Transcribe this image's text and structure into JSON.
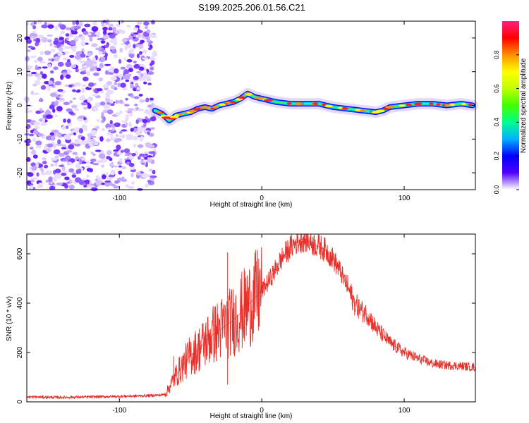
{
  "figure": {
    "title": "S199.2025.206.01.56.C21"
  },
  "chart_data": [
    {
      "type": "heatmap",
      "xlabel": "Height of straight line (km)",
      "ylabel": "Frequency (Hz)",
      "xlim": [
        -165,
        150
      ],
      "ylim": [
        -25,
        25
      ],
      "x_ticks": [
        -100,
        0,
        100
      ],
      "y_ticks": [
        -20,
        -10,
        0,
        10,
        20
      ],
      "noise_region_x": [
        -165,
        -75
      ],
      "ridge": {
        "x": [
          -75,
          -70,
          -65,
          -60,
          -55,
          -50,
          -45,
          -40,
          -35,
          -30,
          -25,
          -20,
          -15,
          -10,
          -5,
          0,
          10,
          20,
          30,
          40,
          50,
          60,
          70,
          80,
          85,
          90,
          100,
          110,
          120,
          130,
          140,
          148
        ],
        "freq": [
          -1.5,
          -2.5,
          -4.5,
          -3,
          -2.5,
          -2,
          -1,
          -0.5,
          -1,
          0,
          0.5,
          1,
          2,
          3.5,
          2.5,
          2,
          1,
          0.5,
          0.5,
          0.5,
          -0.5,
          -1,
          -1.5,
          -2,
          -1.5,
          -0.5,
          0,
          0.5,
          0.5,
          0,
          0.5,
          0
        ]
      },
      "colorbar": {
        "label": "Normalized spectral amplitude",
        "range": [
          0,
          1
        ],
        "ticks": [
          0.0,
          0.2,
          0.4,
          0.6,
          0.8
        ],
        "tick_labels": [
          "0.0",
          "0.2",
          "0.4",
          "0.6",
          "0.8"
        ],
        "colors": [
          "#ffffff",
          "#5000ff",
          "#0000ff",
          "#00b0ff",
          "#00ff90",
          "#40ff00",
          "#c0ff00",
          "#ffff00",
          "#ff9000",
          "#ff0000",
          "#ff2080"
        ]
      }
    },
    {
      "type": "line",
      "xlabel": "Height of straight line (km)",
      "ylabel": "SNR (10 * v/v)",
      "xlim": [
        -165,
        150
      ],
      "ylim": [
        0,
        680
      ],
      "x_ticks": [
        -100,
        0,
        100
      ],
      "y_ticks": [
        0,
        200,
        400,
        600
      ],
      "series": [
        {
          "color": "#e8302a",
          "x": [
            -165,
            -140,
            -120,
            -100,
            -80,
            -70,
            -67,
            -65,
            -60,
            -55,
            -50,
            -45,
            -40,
            -35,
            -30,
            -25,
            -20,
            -15,
            -10,
            -5,
            0,
            5,
            10,
            15,
            20,
            25,
            30,
            35,
            40,
            45,
            50,
            55,
            60,
            65,
            70,
            75,
            80,
            85,
            90,
            95,
            100,
            110,
            120,
            130,
            140,
            150
          ],
          "y": [
            20,
            18,
            20,
            22,
            25,
            28,
            35,
            60,
            110,
            150,
            190,
            210,
            240,
            270,
            290,
            310,
            330,
            360,
            390,
            420,
            450,
            490,
            540,
            590,
            625,
            650,
            660,
            645,
            630,
            615,
            580,
            530,
            470,
            400,
            370,
            350,
            300,
            270,
            240,
            220,
            200,
            175,
            155,
            148,
            145,
            140
          ],
          "spikes": [
            {
              "x": -24,
              "y": 605
            },
            {
              "x": -24,
              "y": 70
            },
            {
              "x": -62,
              "y": 185
            },
            {
              "x": -44,
              "y": 260
            },
            {
              "x": 28,
              "y": 680
            }
          ]
        }
      ]
    }
  ]
}
